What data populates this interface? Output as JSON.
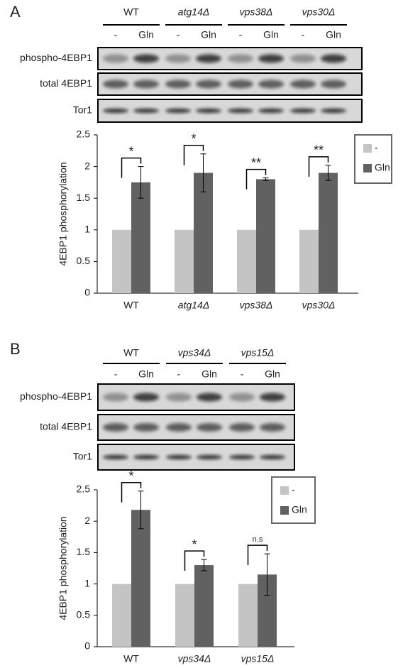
{
  "panels": [
    {
      "label": "A",
      "groups": [
        "WT",
        "atg14Δ",
        "vps38Δ",
        "vps30Δ"
      ],
      "lanes": [
        "-",
        "Gln",
        "-",
        "Gln",
        "-",
        "Gln",
        "-",
        "Gln"
      ],
      "blots": [
        "phospho-4EBP1",
        "total 4EBP1",
        "Tor1"
      ]
    },
    {
      "label": "B",
      "groups": [
        "WT",
        "vps34Δ",
        "vps15Δ"
      ],
      "lanes": [
        "-",
        "Gln",
        "-",
        "Gln",
        "-",
        "Gln"
      ],
      "blots": [
        "phospho-4EBP1",
        "total 4EBP1",
        "Tor1"
      ]
    }
  ],
  "chart_data": [
    {
      "type": "bar",
      "ylabel": "4EBP1 phosphorylation",
      "categories": [
        "WT",
        "atg14Δ",
        "vps38Δ",
        "vps30Δ"
      ],
      "series": [
        {
          "name": "-",
          "color": "#c4c4c4",
          "values": [
            1,
            1,
            1,
            1
          ]
        },
        {
          "name": "Gln",
          "color": "#616161",
          "values": [
            1.75,
            1.9,
            1.8,
            1.9
          ],
          "errors": [
            0.25,
            0.3,
            0.02,
            0.12
          ]
        }
      ],
      "significance": [
        "*",
        "*",
        "**",
        "**"
      ],
      "ylim": [
        0,
        2.5
      ],
      "yticks": [
        0,
        0.5,
        1,
        1.5,
        2,
        2.5
      ],
      "legend": "upper right"
    },
    {
      "type": "bar",
      "ylabel": "4EBP1 phosphorylation",
      "categories": [
        "WT",
        "vps34Δ",
        "vps15Δ"
      ],
      "series": [
        {
          "name": "-",
          "color": "#c4c4c4",
          "values": [
            1,
            1,
            1
          ]
        },
        {
          "name": "Gln",
          "color": "#616161",
          "values": [
            2.18,
            1.3,
            1.15
          ],
          "errors": [
            0.3,
            0.09,
            0.33
          ]
        }
      ],
      "significance": [
        "*",
        "*",
        "n.s"
      ],
      "ylim": [
        0,
        2.5
      ],
      "yticks": [
        0,
        0.5,
        1,
        1.5,
        2,
        2.5
      ],
      "legend": "upper right"
    }
  ]
}
